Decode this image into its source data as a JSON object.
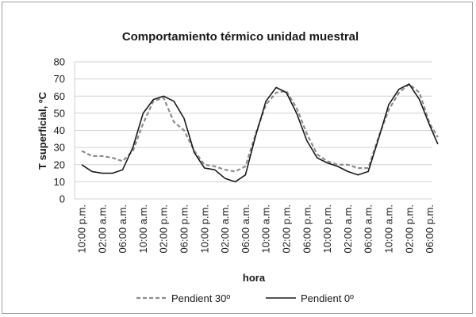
{
  "chart_data": {
    "type": "line",
    "title": "Comportamiento térmico unidad muestral",
    "xlabel": "hora",
    "ylabel": "T superficial, ºC",
    "ylim": [
      0,
      80
    ],
    "yticks": [
      0,
      10,
      20,
      30,
      40,
      50,
      60,
      70,
      80
    ],
    "grid": true,
    "legend_position": "bottom",
    "x_tick_labels": [
      "10:00 p.m.",
      "02:00 a.m.",
      "06:00 a.m.",
      "10:00 a.m.",
      "02:00 p.m.",
      "06:00 p.m.",
      "10:00 p.m.",
      "02:00 a.m.",
      "06:00 a.m.",
      "10:00 a.m.",
      "02:00 p.m.",
      "06:00 p.m.",
      "10:00 p.m.",
      "02:00 a.m.",
      "06:00 a.m.",
      "10:00 a.m.",
      "02:00 p.m.",
      "06:00 p.m."
    ],
    "x_start_index": 0,
    "x_end_index": 17.4,
    "series": [
      {
        "name": "Pendient 30º",
        "style": "dashed",
        "color": "#8c8c8c",
        "x": [
          0,
          0.5,
          1,
          1.5,
          2,
          2.5,
          3,
          3.5,
          4,
          4.5,
          5,
          5.5,
          6,
          6.5,
          7,
          7.5,
          8,
          8.5,
          9,
          9.5,
          10,
          10.5,
          11,
          11.5,
          12,
          12.5,
          13,
          13.5,
          14,
          14.5,
          15,
          15.5,
          16,
          16.5,
          17,
          17.4
        ],
        "values": [
          28,
          25,
          25,
          24,
          22,
          28,
          44,
          57,
          59,
          45,
          40,
          28,
          20,
          19,
          17,
          16,
          19,
          38,
          55,
          62,
          63,
          53,
          38,
          26,
          22,
          20,
          20,
          18,
          18,
          36,
          52,
          62,
          67,
          62,
          44,
          36
        ]
      },
      {
        "name": "Pendient 0º",
        "style": "solid",
        "color": "#1a1a1a",
        "x": [
          0,
          0.5,
          1,
          1.5,
          2,
          2.5,
          3,
          3.5,
          4,
          4.5,
          5,
          5.5,
          6,
          6.5,
          7,
          7.5,
          8,
          8.5,
          9,
          9.5,
          10,
          10.5,
          11,
          11.5,
          12,
          12.5,
          13,
          13.5,
          14,
          14.5,
          15,
          15.5,
          16,
          16.5,
          17,
          17.4
        ],
        "values": [
          20,
          16,
          15,
          15,
          17,
          30,
          50,
          58,
          60,
          57,
          47,
          27,
          18,
          17,
          12,
          10,
          14,
          37,
          57,
          65,
          62,
          50,
          34,
          24,
          21,
          19,
          16,
          14,
          16,
          35,
          55,
          64,
          67,
          58,
          43,
          32
        ]
      }
    ]
  }
}
